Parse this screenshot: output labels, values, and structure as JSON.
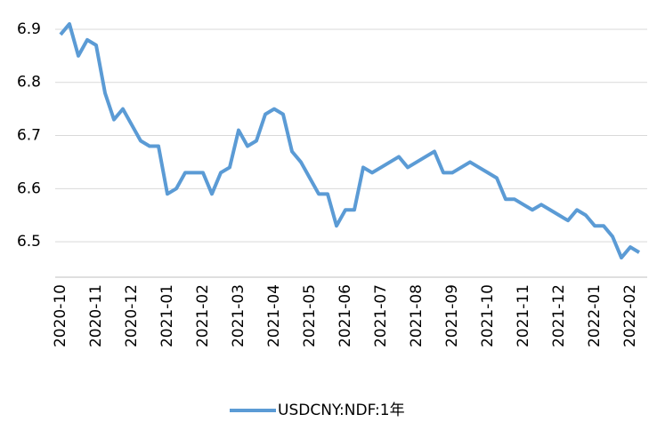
{
  "chart_data": {
    "type": "line",
    "categories": [
      "2020-10",
      null,
      null,
      null,
      "2020-11",
      null,
      null,
      null,
      "2020-12",
      null,
      null,
      null,
      "2021-01",
      null,
      null,
      null,
      "2021-02",
      null,
      null,
      null,
      "2021-03",
      null,
      null,
      null,
      "2021-04",
      null,
      null,
      null,
      "2021-05",
      null,
      null,
      null,
      "2021-06",
      null,
      null,
      null,
      "2021-07",
      null,
      null,
      null,
      "2021-08",
      null,
      null,
      null,
      "2021-09",
      null,
      null,
      null,
      "2021-10",
      null,
      null,
      null,
      "2021-11",
      null,
      null,
      null,
      "2021-12",
      null,
      null,
      null,
      "2022-01",
      null,
      null,
      null,
      "2022-02",
      null
    ],
    "series": [
      {
        "name": "USDCNY:NDF:1年",
        "color": "#5b9bd5",
        "values": [
          6.89,
          6.91,
          6.85,
          6.88,
          6.87,
          6.78,
          6.73,
          6.75,
          6.72,
          6.69,
          6.68,
          6.68,
          6.59,
          6.6,
          6.63,
          6.63,
          6.63,
          6.59,
          6.63,
          6.64,
          6.71,
          6.68,
          6.69,
          6.74,
          6.75,
          6.74,
          6.67,
          6.65,
          6.62,
          6.59,
          6.59,
          6.53,
          6.56,
          6.56,
          6.64,
          6.63,
          6.64,
          6.65,
          6.66,
          6.64,
          6.65,
          6.66,
          6.67,
          6.63,
          6.63,
          6.64,
          6.65,
          6.64,
          6.63,
          6.62,
          6.58,
          6.58,
          6.57,
          6.56,
          6.57,
          6.56,
          6.55,
          6.54,
          6.56,
          6.55,
          6.53,
          6.53,
          6.51,
          6.47,
          6.49,
          6.48
        ]
      }
    ],
    "ylim": [
      6.43,
      6.93
    ],
    "yticks": [
      6.5,
      6.6,
      6.7,
      6.8,
      6.9
    ],
    "grid": true,
    "legend": "bottom"
  }
}
